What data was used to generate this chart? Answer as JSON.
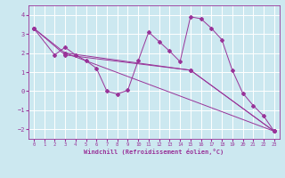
{
  "xlabel": "Windchill (Refroidissement éolien,°C)",
  "ylabel": "",
  "bg_color": "#cce8f0",
  "line_color": "#993399",
  "grid_color": "#ffffff",
  "xlim": [
    -0.5,
    23.5
  ],
  "ylim": [
    -2.5,
    4.5
  ],
  "xticks": [
    0,
    1,
    2,
    3,
    4,
    5,
    6,
    7,
    8,
    9,
    10,
    11,
    12,
    13,
    14,
    15,
    16,
    17,
    18,
    19,
    20,
    21,
    22,
    23
  ],
  "yticks": [
    -2,
    -1,
    0,
    1,
    2,
    3,
    4
  ],
  "series": [
    {
      "x": [
        0,
        2,
        3,
        4,
        5,
        6,
        7,
        8,
        9,
        10,
        11,
        12,
        13,
        14,
        15,
        16,
        17,
        18,
        19,
        20,
        21,
        22,
        23
      ],
      "y": [
        3.3,
        1.9,
        2.3,
        1.9,
        1.6,
        1.2,
        0.0,
        -0.15,
        0.05,
        1.6,
        3.1,
        2.6,
        2.1,
        1.55,
        3.9,
        3.8,
        3.3,
        2.7,
        1.1,
        -0.1,
        -0.75,
        -1.3,
        -2.1
      ]
    },
    {
      "x": [
        0,
        3,
        15,
        23
      ],
      "y": [
        3.3,
        2.0,
        1.1,
        -2.1
      ]
    },
    {
      "x": [
        0,
        3,
        15,
        23
      ],
      "y": [
        3.3,
        1.9,
        1.1,
        -2.1
      ]
    },
    {
      "x": [
        3,
        23
      ],
      "y": [
        2.0,
        -2.1
      ]
    }
  ]
}
